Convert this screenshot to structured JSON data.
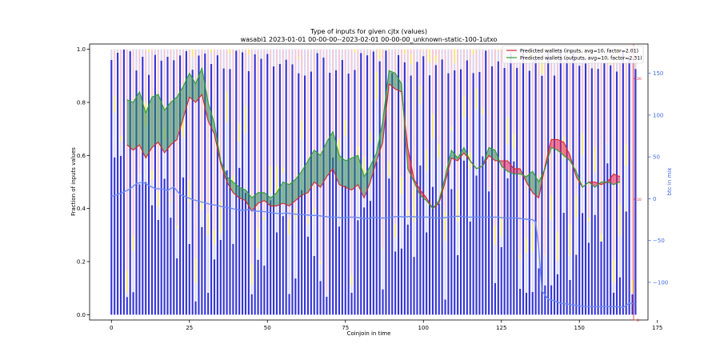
{
  "chart_data": {
    "type": "bar",
    "title": "Type of inputs for given cjtx (values)",
    "subtitle": "wasabi1 2023-01-01 00-00-00--2023-02-01 00-00-00_unknown-static-100-1utxo",
    "xlabel": "Coinjoin in time",
    "ylabel": "Fraction of inputs values",
    "y2label": "btc in mix",
    "xlim": [
      -7,
      172
    ],
    "ylim": [
      -0.02,
      1.02
    ],
    "y2lim": [
      -145,
      185
    ],
    "xticks": [
      0,
      25,
      50,
      75,
      100,
      125,
      150,
      175
    ],
    "yticks": [
      0.0,
      0.2,
      0.4,
      0.6,
      0.8,
      1.0
    ],
    "yticks_labels": [
      "0.0",
      "0.2",
      "0.4",
      "0.6",
      "0.8",
      "1.0"
    ],
    "y2ticks": [
      -100,
      -50,
      0,
      50,
      100,
      150
    ],
    "y2ticks_labels": [
      "−100",
      "−50",
      "0",
      "50",
      "100",
      "150"
    ],
    "y3ticks_labels": [
      "20",
      "10",
      "0"
    ],
    "legend_position": "top-right",
    "grid": false,
    "colors": {
      "fresh_bar": "#1f1fd0",
      "remix_bar": "#c9c9f0",
      "yellow_bar": "#f5dc50",
      "pink_bar": "#f2b6c8",
      "inputs_line": "#d62728",
      "outputs_line": "#2ca02c",
      "fill_green": "#2e8b57",
      "fill_red": "#e8204a",
      "btc_line": "#6b8cf5",
      "y2_axis": "#4169e1",
      "y3_axis": "#d62728"
    },
    "series": [
      {
        "name": "Predicted wallets (inputs, avg=10, factor=2.01)",
        "x": [
          5,
          7,
          9,
          11,
          13,
          15,
          17,
          19,
          21,
          23,
          25,
          27,
          29,
          31,
          33,
          35,
          37,
          39,
          41,
          43,
          45,
          47,
          49,
          51,
          53,
          55,
          57,
          59,
          61,
          63,
          65,
          67,
          69,
          71,
          73,
          75,
          77,
          79,
          81,
          83,
          85,
          87,
          89,
          91,
          93,
          95,
          97,
          99,
          101,
          103,
          105,
          107,
          109,
          111,
          113,
          115,
          117,
          119,
          121,
          123,
          125,
          127,
          129,
          131,
          133,
          135,
          137,
          139,
          141,
          143,
          145,
          147,
          149,
          151,
          153,
          155,
          157,
          159,
          161,
          163
        ],
        "values": [
          0.64,
          0.62,
          0.64,
          0.59,
          0.63,
          0.65,
          0.61,
          0.64,
          0.66,
          0.74,
          0.82,
          0.8,
          0.83,
          0.73,
          0.68,
          0.57,
          0.5,
          0.46,
          0.44,
          0.43,
          0.39,
          0.42,
          0.43,
          0.41,
          0.41,
          0.42,
          0.41,
          0.43,
          0.45,
          0.46,
          0.5,
          0.48,
          0.52,
          0.55,
          0.49,
          0.48,
          0.47,
          0.49,
          0.44,
          0.5,
          0.58,
          0.65,
          0.87,
          0.85,
          0.84,
          0.63,
          0.51,
          0.47,
          0.44,
          0.4,
          0.42,
          0.5,
          0.59,
          0.58,
          0.61,
          0.58,
          0.55,
          0.56,
          0.6,
          0.58,
          0.58,
          0.58,
          0.55,
          0.55,
          0.5,
          0.46,
          0.44,
          0.56,
          0.66,
          0.66,
          0.65,
          0.6,
          0.52,
          0.48,
          0.5,
          0.5,
          0.49,
          0.5,
          0.53,
          0.52
        ]
      },
      {
        "name": "Predicted wallets (outputs, avg=10, factor=2.31)",
        "x": [
          5,
          7,
          9,
          11,
          13,
          15,
          17,
          19,
          21,
          23,
          25,
          27,
          29,
          31,
          33,
          35,
          37,
          39,
          41,
          43,
          45,
          47,
          49,
          51,
          53,
          55,
          57,
          59,
          61,
          63,
          65,
          67,
          69,
          71,
          73,
          75,
          77,
          79,
          81,
          83,
          85,
          87,
          89,
          91,
          93,
          95,
          97,
          99,
          101,
          103,
          105,
          107,
          109,
          111,
          113,
          115,
          117,
          119,
          121,
          123,
          125,
          127,
          129,
          131,
          133,
          135,
          137,
          139,
          141,
          143,
          145,
          147,
          149,
          151,
          153,
          155,
          157,
          159,
          161,
          163
        ],
        "values": [
          0.81,
          0.8,
          0.84,
          0.76,
          0.82,
          0.83,
          0.77,
          0.8,
          0.82,
          0.86,
          0.91,
          0.87,
          0.93,
          0.8,
          0.72,
          0.58,
          0.52,
          0.5,
          0.48,
          0.47,
          0.44,
          0.46,
          0.46,
          0.44,
          0.46,
          0.5,
          0.49,
          0.51,
          0.54,
          0.58,
          0.62,
          0.6,
          0.65,
          0.69,
          0.6,
          0.58,
          0.59,
          0.6,
          0.52,
          0.56,
          0.61,
          0.73,
          0.92,
          0.91,
          0.87,
          0.55,
          0.5,
          0.45,
          0.43,
          0.4,
          0.43,
          0.52,
          0.62,
          0.59,
          0.63,
          0.58,
          0.55,
          0.56,
          0.63,
          0.62,
          0.56,
          0.54,
          0.53,
          0.53,
          0.52,
          0.54,
          0.5,
          0.55,
          0.63,
          0.62,
          0.6,
          0.58,
          0.54,
          0.48,
          0.5,
          0.48,
          0.5,
          0.5,
          0.49,
          0.5
        ]
      },
      {
        "name": "",
        "axis": "right",
        "x": [
          0,
          2,
          4,
          6,
          8,
          10,
          12,
          14,
          16,
          18,
          20,
          22,
          24,
          26,
          28,
          30,
          32,
          34,
          36,
          38,
          40,
          42,
          44,
          46,
          48,
          50,
          52,
          54,
          56,
          58,
          60,
          62,
          64,
          66,
          68,
          70,
          72,
          74,
          76,
          78,
          80,
          82,
          84,
          86,
          88,
          90,
          92,
          94,
          96,
          98,
          100,
          102,
          104,
          106,
          108,
          110,
          112,
          114,
          116,
          118,
          120,
          122,
          124,
          126,
          128,
          130,
          132,
          134,
          135,
          136,
          137,
          138,
          140,
          142,
          144,
          146,
          148,
          150,
          152,
          154,
          156,
          158,
          160,
          162,
          164,
          166,
          168
        ],
        "values": [
          3,
          5,
          8,
          12,
          18,
          20,
          16,
          12,
          12,
          10,
          14,
          5,
          2,
          -1,
          -3,
          -5,
          -7,
          -8,
          -10,
          -11,
          -13,
          -14,
          -13,
          -15,
          -15,
          -16,
          -17,
          -18,
          -17,
          -18,
          -19,
          -19,
          -20,
          -20,
          -21,
          -22,
          -22,
          -23,
          -22,
          -22,
          -23,
          -24,
          -22,
          -23,
          -23,
          -22,
          -21,
          -22,
          -21,
          -22,
          -22,
          -22,
          -23,
          -23,
          -22,
          -21,
          -21,
          -22,
          -22,
          -22,
          -22,
          -22,
          -22,
          -23,
          -23,
          -23,
          -24,
          -25,
          -25,
          -28,
          -60,
          -110,
          -120,
          -122,
          -125,
          -126,
          -127,
          -128,
          -129,
          -129,
          -129,
          -129,
          -129,
          -129,
          -130,
          -125,
          -126
        ]
      }
    ]
  },
  "legend": {
    "items": [
      {
        "label": "Predicted wallets (inputs, avg=10, factor=2.01)",
        "color": "#d62728"
      },
      {
        "label": "Predicted wallets (outputs, avg=10, factor=2.31)",
        "color": "#2ca02c"
      }
    ]
  }
}
